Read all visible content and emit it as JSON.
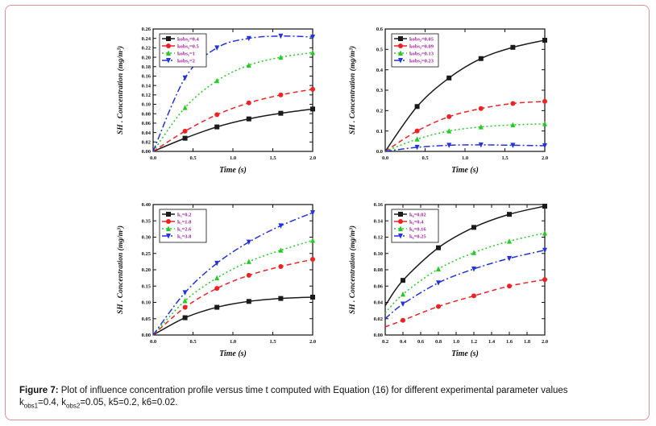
{
  "caption": {
    "label": "Figure 7:",
    "text": "Plot of influence concentration profile versus time t computed with Equation (16) for different experimental parameter values",
    "params": [
      {
        "k": "k",
        "sub": "obs1",
        "val": "=0.4, "
      },
      {
        "k": "k",
        "sub": "obs2",
        "val": "=0.05, k5=0.2, k6=0.02."
      }
    ]
  },
  "chart_data": [
    {
      "type": "line",
      "xlabel": "Time (s)",
      "ylabel": "SH . Concentration (mg/m³)",
      "xlim": [
        0,
        2
      ],
      "ylim": [
        0,
        0.26
      ],
      "xticks": [
        "0.0",
        "0.5",
        "1.0",
        "1.5",
        "2.0"
      ],
      "yticks": [
        "0.00",
        "0.02",
        "0.04",
        "0.06",
        "0.08",
        "0.10",
        "0.12",
        "0.14",
        "0.16",
        "0.18",
        "0.20",
        "0.22",
        "0.24",
        "0.26"
      ],
      "legend_position": "top-left",
      "series": [
        {
          "name": "kobs₁=0.4",
          "color": "#1a1a1a",
          "dash": "",
          "marker": "square",
          "x": [
            0,
            0.4,
            0.8,
            1.2,
            1.6,
            2.0
          ],
          "y": [
            0,
            0.028,
            0.052,
            0.069,
            0.081,
            0.09
          ]
        },
        {
          "name": "kobs₁=0.5",
          "color": "#ee2222",
          "dash": "6,4",
          "marker": "circle",
          "x": [
            0,
            0.4,
            0.8,
            1.2,
            1.6,
            2.0
          ],
          "y": [
            0,
            0.043,
            0.078,
            0.103,
            0.12,
            0.132
          ]
        },
        {
          "name": "kobs₁=1",
          "color": "#22cc22",
          "dash": "2,3",
          "marker": "triangle",
          "x": [
            0,
            0.4,
            0.8,
            1.2,
            1.6,
            2.0
          ],
          "y": [
            0,
            0.093,
            0.15,
            0.183,
            0.2,
            0.21
          ]
        },
        {
          "name": "kobs₁=2",
          "color": "#2233dd",
          "dash": "8,3,2,3",
          "marker": "down",
          "x": [
            0,
            0.4,
            0.8,
            1.2,
            1.6,
            2.0
          ],
          "y": [
            0,
            0.156,
            0.22,
            0.24,
            0.245,
            0.243
          ]
        }
      ]
    },
    {
      "type": "line",
      "xlabel": "Time (s)",
      "ylabel": "SH . Concentration (mg/m³)",
      "xlim": [
        0,
        2
      ],
      "ylim": [
        0,
        0.6
      ],
      "xticks": [
        "0.0",
        "0.5",
        "1.0",
        "1.5",
        "2.0"
      ],
      "yticks": [
        "0.0",
        "0.1",
        "0.2",
        "0.3",
        "0.4",
        "0.5",
        "0.6"
      ],
      "legend_position": "top-left",
      "series": [
        {
          "name": "kobs₂=0.05",
          "color": "#1a1a1a",
          "dash": "",
          "marker": "square",
          "x": [
            0,
            0.4,
            0.8,
            1.2,
            1.6,
            2.0
          ],
          "y": [
            0,
            0.22,
            0.36,
            0.455,
            0.51,
            0.545
          ]
        },
        {
          "name": "kobs₂=0.09",
          "color": "#ee2222",
          "dash": "6,4",
          "marker": "circle",
          "x": [
            0,
            0.4,
            0.8,
            1.2,
            1.6,
            2.0
          ],
          "y": [
            0,
            0.1,
            0.17,
            0.21,
            0.235,
            0.245
          ]
        },
        {
          "name": "kobs₂=0.13",
          "color": "#22cc22",
          "dash": "2,3",
          "marker": "triangle",
          "x": [
            0,
            0.4,
            0.8,
            1.2,
            1.6,
            2.0
          ],
          "y": [
            0,
            0.06,
            0.1,
            0.12,
            0.13,
            0.135
          ]
        },
        {
          "name": "kobs₂=0.23",
          "color": "#2233dd",
          "dash": "8,3,2,3",
          "marker": "down",
          "x": [
            0,
            0.4,
            0.8,
            1.2,
            1.6,
            2.0
          ],
          "y": [
            0,
            0.02,
            0.03,
            0.032,
            0.03,
            0.028
          ]
        }
      ]
    },
    {
      "type": "line",
      "xlabel": "Time (s)",
      "ylabel": "SH . Concentration (mg/m³)",
      "xlim": [
        0,
        2
      ],
      "ylim": [
        0,
        0.4
      ],
      "xticks": [
        "0.0",
        "0.5",
        "1.0",
        "1.5",
        "2.0"
      ],
      "yticks": [
        "0.00",
        "0.05",
        "0.10",
        "0.15",
        "0.20",
        "0.25",
        "0.30",
        "0.35",
        "0.40"
      ],
      "legend_position": "top-left",
      "series": [
        {
          "name": "k₅=0.2",
          "color": "#1a1a1a",
          "dash": "",
          "marker": "square",
          "x": [
            0,
            0.4,
            0.8,
            1.2,
            1.6,
            2.0
          ],
          "y": [
            0,
            0.053,
            0.085,
            0.103,
            0.112,
            0.116
          ]
        },
        {
          "name": "k₅=1.8",
          "color": "#ee2222",
          "dash": "6,4",
          "marker": "circle",
          "x": [
            0,
            0.4,
            0.8,
            1.2,
            1.6,
            2.0
          ],
          "y": [
            0,
            0.085,
            0.143,
            0.183,
            0.21,
            0.232
          ]
        },
        {
          "name": "k₅=2.6",
          "color": "#22cc22",
          "dash": "2,3",
          "marker": "triangle",
          "x": [
            0,
            0.4,
            0.8,
            1.2,
            1.6,
            2.0
          ],
          "y": [
            0,
            0.105,
            0.175,
            0.225,
            0.26,
            0.29
          ]
        },
        {
          "name": "k₅=3.8",
          "color": "#2233dd",
          "dash": "8,3,2,3",
          "marker": "down",
          "x": [
            0,
            0.4,
            0.8,
            1.2,
            1.6,
            2.0
          ],
          "y": [
            0,
            0.13,
            0.22,
            0.285,
            0.335,
            0.375
          ]
        }
      ]
    },
    {
      "type": "line",
      "xlabel": "Time (s)",
      "ylabel": "SH . Concentration (mg/m³)",
      "xlim": [
        0.2,
        2
      ],
      "ylim": [
        0,
        0.16
      ],
      "xticks": [
        "0.2",
        "0.4",
        "0.6",
        "0.8",
        "1.0",
        "1.2",
        "1.4",
        "1.6",
        "1.8",
        "2.0"
      ],
      "yticks": [
        "0.00",
        "0.02",
        "0.04",
        "0.06",
        "0.08",
        "0.10",
        "0.12",
        "0.14",
        "0.16"
      ],
      "legend_position": "top-left",
      "series": [
        {
          "name": "k₆=0.02",
          "color": "#1a1a1a",
          "dash": "",
          "marker": "square",
          "x": [
            0.2,
            0.4,
            0.8,
            1.2,
            1.6,
            2.0
          ],
          "y": [
            0.036,
            0.067,
            0.107,
            0.132,
            0.148,
            0.158
          ]
        },
        {
          "name": "k₆=0.4",
          "color": "#ee2222",
          "dash": "6,4",
          "marker": "circle",
          "x": [
            0.2,
            0.4,
            0.8,
            1.2,
            1.6,
            2.0
          ],
          "y": [
            0.01,
            0.018,
            0.035,
            0.048,
            0.06,
            0.068
          ]
        },
        {
          "name": "k₆=0.16",
          "color": "#22cc22",
          "dash": "2,3",
          "marker": "triangle",
          "x": [
            0.2,
            0.4,
            0.8,
            1.2,
            1.6,
            2.0
          ],
          "y": [
            0.027,
            0.05,
            0.081,
            0.101,
            0.115,
            0.125
          ]
        },
        {
          "name": "k₆=0.25",
          "color": "#2233dd",
          "dash": "8,3,2,3",
          "marker": "down",
          "x": [
            0.2,
            0.4,
            0.8,
            1.2,
            1.6,
            2.0
          ],
          "y": [
            0.02,
            0.038,
            0.064,
            0.081,
            0.094,
            0.104
          ]
        }
      ]
    }
  ]
}
